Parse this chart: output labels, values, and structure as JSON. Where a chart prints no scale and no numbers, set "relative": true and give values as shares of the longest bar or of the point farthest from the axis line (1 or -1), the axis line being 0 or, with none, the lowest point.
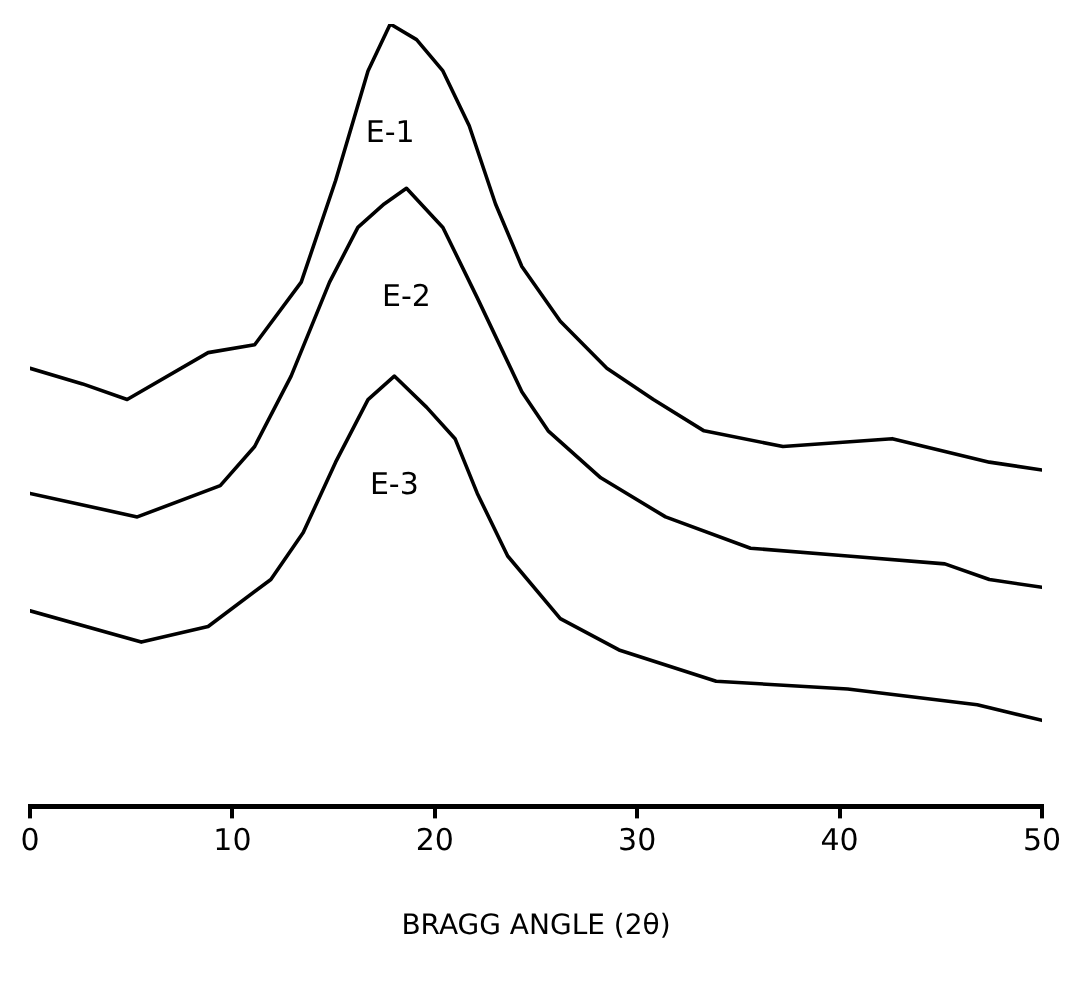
{
  "chart_data": {
    "type": "line",
    "relative": true,
    "xlabel": "BRAGG ANGLE (2θ)",
    "xlim": [
      0,
      50
    ],
    "xticks": [
      0,
      10,
      20,
      30,
      40,
      50
    ],
    "grid": false,
    "legend": false,
    "marker": "none",
    "line_style": "solid",
    "series": [
      {
        "name": "E-1",
        "color": "#000000",
        "x": [
          0,
          2.6,
          4.8,
          8.8,
          11.1,
          13.4,
          15.1,
          16.7,
          17.8,
          19.1,
          20.4,
          21.7,
          23.0,
          24.3,
          26.2,
          28.5,
          30.8,
          33.3,
          37.2,
          42.6,
          47.4,
          50
        ],
        "values": [
          0.56,
          0.54,
          0.52,
          0.58,
          0.59,
          0.67,
          0.8,
          0.94,
          1.0,
          0.98,
          0.94,
          0.87,
          0.77,
          0.69,
          0.62,
          0.56,
          0.52,
          0.48,
          0.46,
          0.47,
          0.44,
          0.43
        ]
      },
      {
        "name": "E-2",
        "color": "#000000",
        "x": [
          0,
          5.3,
          9.4,
          11.1,
          12.9,
          14.8,
          16.2,
          17.5,
          18.6,
          20.4,
          22.1,
          24.3,
          25.6,
          28.2,
          31.4,
          35.6,
          40.4,
          45.2,
          47.4,
          50
        ],
        "values": [
          0.4,
          0.37,
          0.41,
          0.46,
          0.55,
          0.67,
          0.74,
          0.77,
          0.79,
          0.74,
          0.65,
          0.53,
          0.48,
          0.42,
          0.37,
          0.33,
          0.32,
          0.31,
          0.29,
          0.28
        ]
      },
      {
        "name": "E-3",
        "color": "#000000",
        "x": [
          0,
          5.5,
          8.8,
          11.9,
          13.5,
          15.1,
          16.7,
          18.0,
          19.6,
          21.0,
          22.1,
          23.6,
          26.2,
          29.1,
          33.9,
          40.4,
          46.8,
          50
        ],
        "values": [
          0.25,
          0.21,
          0.23,
          0.29,
          0.35,
          0.44,
          0.52,
          0.55,
          0.51,
          0.47,
          0.4,
          0.32,
          0.24,
          0.2,
          0.16,
          0.15,
          0.13,
          0.11
        ]
      }
    ]
  }
}
